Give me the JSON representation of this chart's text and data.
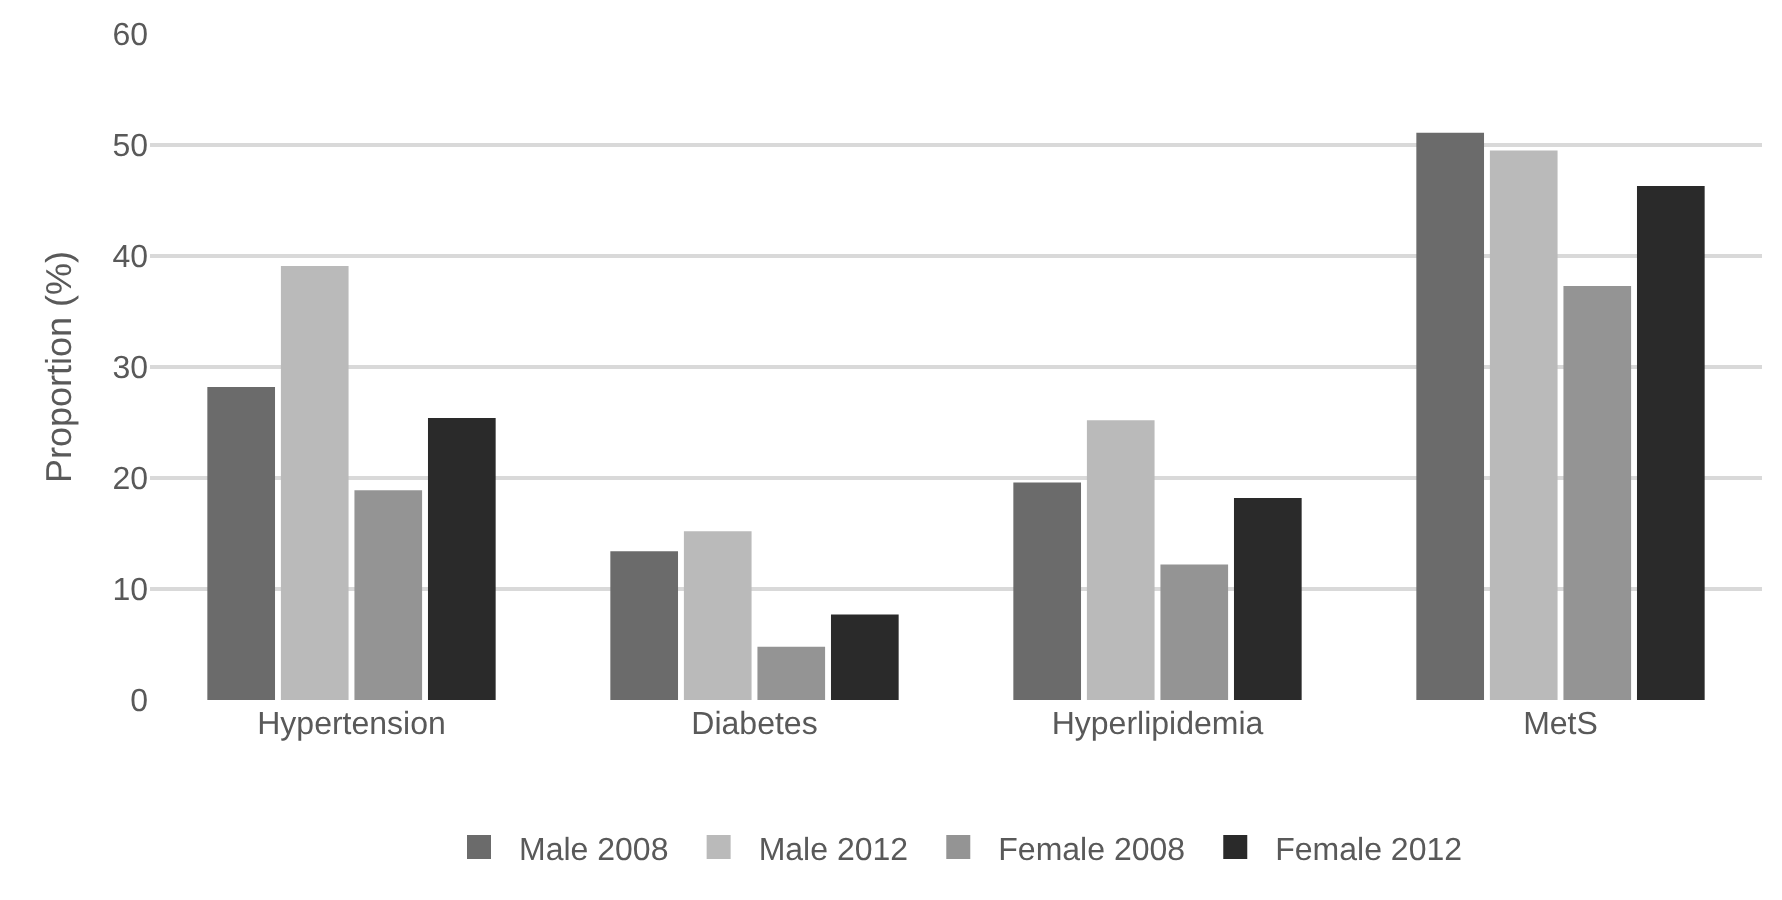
{
  "chart_data": {
    "type": "bar",
    "ylabel": "Proportion (%)",
    "categories": [
      "Hypertension",
      "Diabetes",
      "Hyperlipidemia",
      "MetS"
    ],
    "series": [
      {
        "name": "Male 2008",
        "color": "#6b6b6b",
        "values": [
          28.2,
          13.4,
          19.6,
          51.1
        ]
      },
      {
        "name": "Male 2012",
        "color": "#bababa",
        "values": [
          39.1,
          15.2,
          25.2,
          49.5
        ]
      },
      {
        "name": "Female 2008",
        "color": "#949494",
        "values": [
          18.9,
          4.8,
          12.2,
          37.3
        ]
      },
      {
        "name": "Female 2012",
        "color": "#2a2a2a",
        "values": [
          25.4,
          7.7,
          18.2,
          46.3
        ]
      }
    ],
    "ylim": [
      0,
      60
    ],
    "yticks": [
      0,
      10,
      20,
      30,
      40,
      50,
      60
    ],
    "grid": "y",
    "legend": "bottom"
  }
}
